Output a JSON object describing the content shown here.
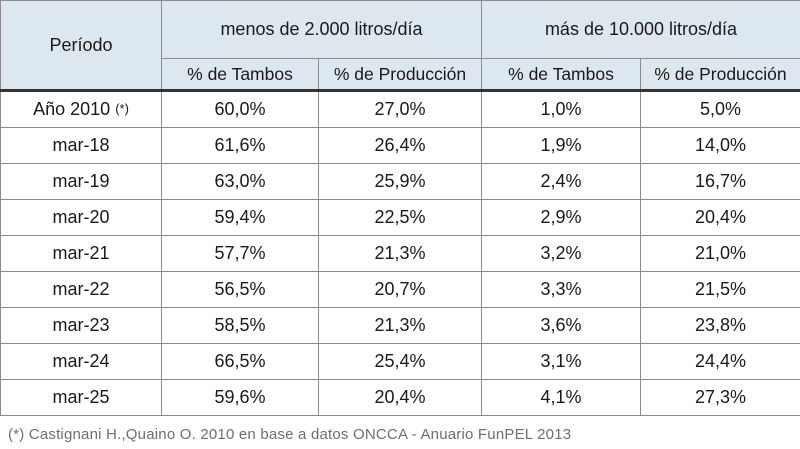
{
  "table": {
    "period_header": "Período",
    "groups": [
      "menos de 2.000 litros/día",
      "más de 10.000 litros/día"
    ],
    "subheaders": [
      "% de Tambos",
      "% de Producción",
      "% de Tambos",
      "% de Producción"
    ],
    "rows": [
      {
        "period": "Año 2010",
        "mark": "(*)",
        "values": [
          "60,0%",
          "27,0%",
          "1,0%",
          "5,0%"
        ]
      },
      {
        "period": "mar-18",
        "mark": "",
        "values": [
          "61,6%",
          "26,4%",
          "1,9%",
          "14,0%"
        ]
      },
      {
        "period": "mar-19",
        "mark": "",
        "values": [
          "63,0%",
          "25,9%",
          "2,4%",
          "16,7%"
        ]
      },
      {
        "period": "mar-20",
        "mark": "",
        "values": [
          "59,4%",
          "22,5%",
          "2,9%",
          "20,4%"
        ]
      },
      {
        "period": "mar-21",
        "mark": "",
        "values": [
          "57,7%",
          "21,3%",
          "3,2%",
          "21,0%"
        ]
      },
      {
        "period": "mar-22",
        "mark": "",
        "values": [
          "56,5%",
          "20,7%",
          "3,3%",
          "21,5%"
        ]
      },
      {
        "period": "mar-23",
        "mark": "",
        "values": [
          "58,5%",
          "21,3%",
          "3,6%",
          "23,8%"
        ]
      },
      {
        "period": "mar-24",
        "mark": "",
        "values": [
          "66,5%",
          "25,4%",
          "3,1%",
          "24,4%"
        ]
      },
      {
        "period": "mar-25",
        "mark": "",
        "values": [
          "59,6%",
          "20,4%",
          "4,1%",
          "27,3%"
        ]
      }
    ],
    "footnote": "(*) Castignani H.,Quaino O. 2010 en base a datos ONCCA - Anuario FunPEL 2013"
  }
}
